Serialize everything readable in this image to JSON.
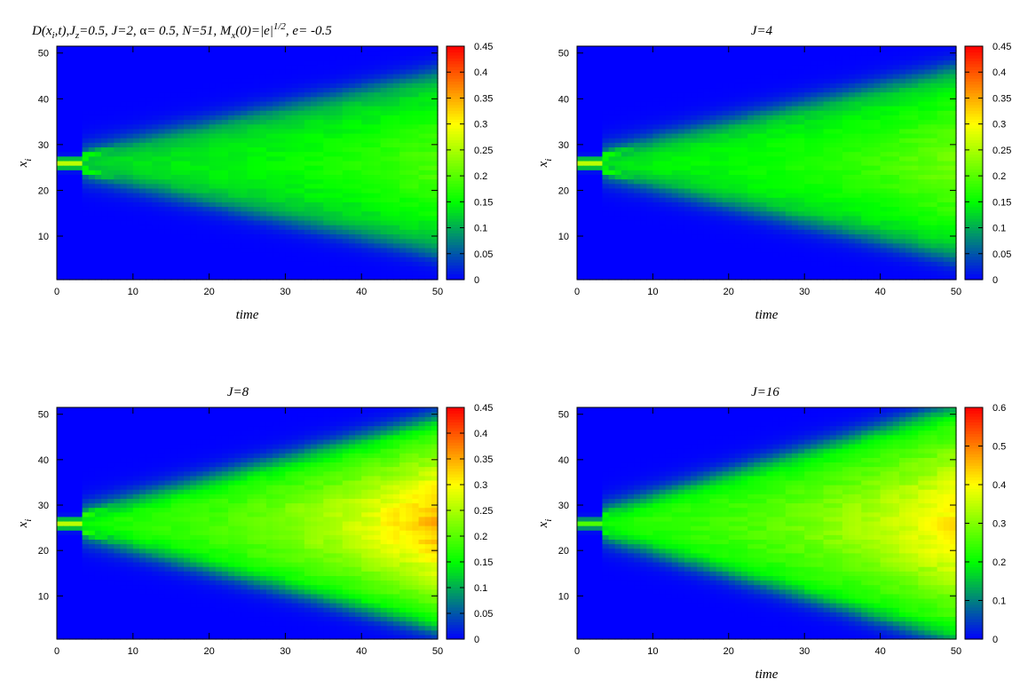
{
  "chart_data": [
    {
      "type": "heatmap",
      "title": "D(x_i,t),J_z=0.5,  J=2, α= 0.5, N=51, M_x(0)=|e|^{1/2},  e= -0.5",
      "title_parts": {
        "D": "D(x",
        "i": "i",
        "t": ",t),J",
        "z": "z",
        "jz": "=0.5,  J=2, ",
        "alpha": "α",
        "rest": "= 0.5, N=51, M",
        "x": "x",
        "m0": "(0)=|e|",
        "exp": "1/2",
        "e": ",  e= -0.5"
      },
      "xlabel": "time",
      "ylabel": "x_i",
      "ylabel_parts": {
        "base": "x",
        "sub": "i"
      },
      "xlim": [
        0,
        50
      ],
      "ylim": [
        1,
        51
      ],
      "x_ticks": [
        "0",
        "10",
        "20",
        "30",
        "40",
        "50"
      ],
      "y_ticks": [
        "10",
        "20",
        "30",
        "40",
        "50"
      ],
      "colorbar_ticks": [
        "0",
        "0.05",
        "0.1",
        "0.15",
        "0.2",
        "0.25",
        "0.3",
        "0.35",
        "0.4",
        "0.45"
      ],
      "colorbar_range": [
        0,
        0.45
      ],
      "colormap": [
        "#0000ff",
        "#00ff00",
        "#ffff00",
        "#ff0000"
      ],
      "features": {
        "source_site": 26,
        "front_speed": 0.38,
        "interior_level": 0.18,
        "peak_level": 0.24
      }
    },
    {
      "type": "heatmap",
      "title": "J=4",
      "xlabel": "time",
      "ylabel": "x_i",
      "ylabel_parts": {
        "base": "x",
        "sub": "i"
      },
      "xlim": [
        0,
        50
      ],
      "ylim": [
        1,
        51
      ],
      "x_ticks": [
        "0",
        "10",
        "20",
        "30",
        "40",
        "50"
      ],
      "y_ticks": [
        "10",
        "20",
        "30",
        "40",
        "50"
      ],
      "colorbar_ticks": [
        "0",
        "0.05",
        "0.1",
        "0.15",
        "0.2",
        "0.25",
        "0.3",
        "0.35",
        "0.4",
        "0.45"
      ],
      "colorbar_range": [
        0,
        0.45
      ],
      "colormap": [
        "#0000ff",
        "#00ff00",
        "#ffff00",
        "#ff0000"
      ],
      "features": {
        "source_site": 26,
        "front_speed": 0.4,
        "interior_level": 0.19,
        "peak_level": 0.26
      }
    },
    {
      "type": "heatmap",
      "title": "J=8",
      "xlabel": "",
      "ylabel": "x_i",
      "ylabel_parts": {
        "base": "x",
        "sub": "i"
      },
      "xlim": [
        0,
        50
      ],
      "ylim": [
        1,
        51
      ],
      "x_ticks": [
        "0",
        "10",
        "20",
        "30",
        "40",
        "50"
      ],
      "y_ticks": [
        "10",
        "20",
        "30",
        "40",
        "50"
      ],
      "colorbar_ticks": [
        "0",
        "0.05",
        "0.1",
        "0.15",
        "0.2",
        "0.25",
        "0.3",
        "0.35",
        "0.4",
        "0.45"
      ],
      "colorbar_range": [
        0,
        0.45
      ],
      "colormap": [
        "#0000ff",
        "#00ff00",
        "#ffff00",
        "#ff0000"
      ],
      "features": {
        "source_site": 26,
        "front_speed": 0.45,
        "interior_level": 0.22,
        "peak_level": 0.36
      }
    },
    {
      "type": "heatmap",
      "title": "J=16",
      "xlabel": "time",
      "ylabel": "x_i",
      "ylabel_parts": {
        "base": "x",
        "sub": "i"
      },
      "xlim": [
        0,
        50
      ],
      "ylim": [
        1,
        51
      ],
      "x_ticks": [
        "0",
        "10",
        "20",
        "30",
        "40",
        "50"
      ],
      "y_ticks": [
        "10",
        "20",
        "30",
        "40",
        "50"
      ],
      "colorbar_ticks": [
        "0",
        "0.1",
        "0.2",
        "0.3",
        "0.4",
        "0.5",
        "0.6"
      ],
      "colorbar_range": [
        0,
        0.6
      ],
      "colormap": [
        "#0000ff",
        "#00ff00",
        "#ffff00",
        "#ff0000"
      ],
      "features": {
        "source_site": 26,
        "front_speed": 0.5,
        "interior_level": 0.3,
        "peak_level": 0.46
      }
    }
  ]
}
